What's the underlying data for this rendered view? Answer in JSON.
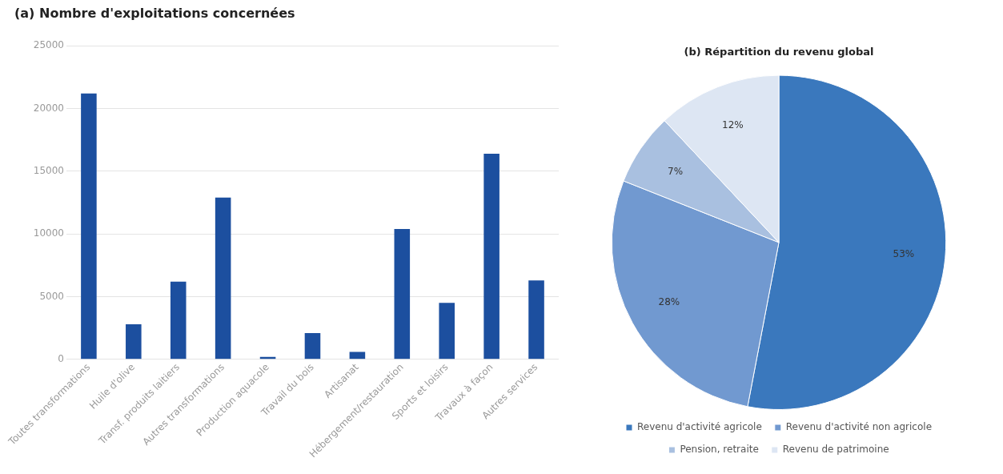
{
  "chart_data": [
    {
      "type": "bar",
      "title": "(a) Nombre d'exploitations concernées",
      "categories": [
        "Toutes transformations",
        "Huile d'olive",
        "Transf. produits laitiers",
        "Autres transformations",
        "Production aquacole",
        "Travail du bois",
        "Artisanat",
        "Hébergement/restauration",
        "Sports et loisirs",
        "Travaux à façon",
        "Autres services"
      ],
      "values": [
        21200,
        2800,
        6200,
        12900,
        200,
        2100,
        600,
        10400,
        4500,
        16400,
        6300
      ],
      "color": "#1c4f9f",
      "ylim": [
        0,
        25000
      ],
      "yticks": [
        0,
        5000,
        10000,
        15000,
        20000,
        25000
      ],
      "grid": "y",
      "legend": false
    },
    {
      "type": "pie",
      "title": "(b) Répartition du revenu global",
      "categories": [
        "Revenu d'activité agricole",
        "Revenu d'activité non agricole",
        "Pension, retraite",
        "Revenu de patrimoine"
      ],
      "values": [
        53,
        28,
        7,
        12
      ],
      "value_labels": [
        "53%",
        "28%",
        "7%",
        "12%"
      ],
      "colors": [
        "#3a78bd",
        "#7199d0",
        "#a9c0e0",
        "#dde6f3"
      ],
      "legend": "bottom"
    }
  ]
}
